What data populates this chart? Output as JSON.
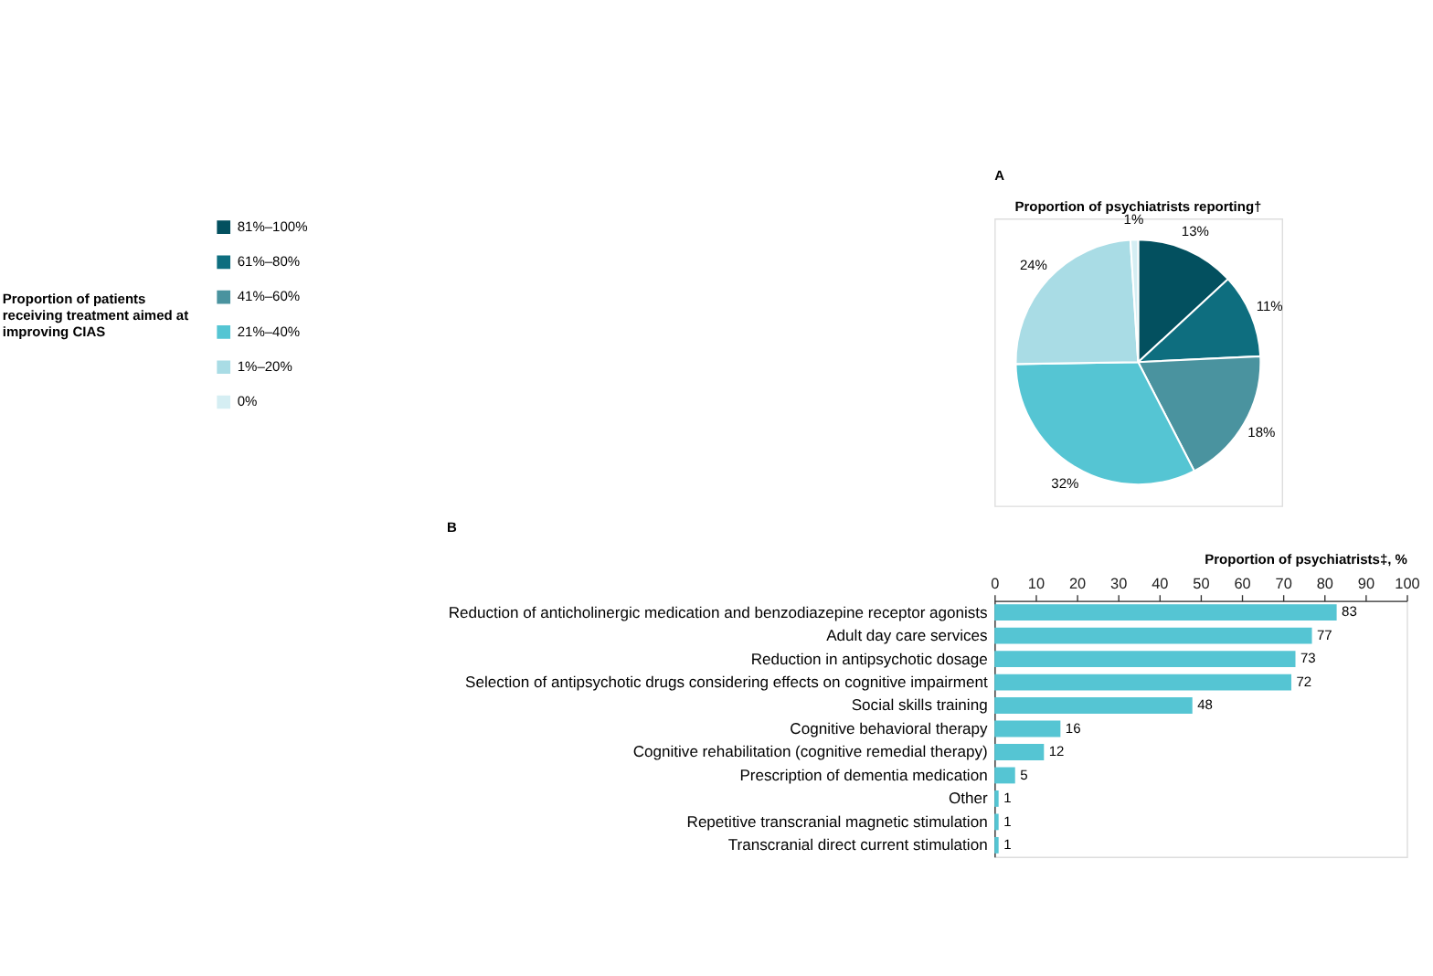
{
  "chart_data": [
    {
      "type": "pie",
      "title": "Proportion of psychiatrists reporting†",
      "legend_title": "Proportion of patients receiving treatment aimed at improving CIAS",
      "annotations": [
        "A"
      ],
      "legend": "left",
      "categories": [
        "81%–100%",
        "61%–80%",
        "41%–60%",
        "21%–40%",
        "1%–20%",
        "0%"
      ],
      "values": [
        13,
        11,
        18,
        32,
        24,
        1
      ],
      "value_labels": [
        "13%",
        "11%",
        "18%",
        "32%",
        "24%",
        "1%"
      ],
      "colors": [
        "#03505f",
        "#0e6e7f",
        "#4a939f",
        "#55c5d3",
        "#a9dce5",
        "#d5eef3"
      ]
    },
    {
      "type": "bar",
      "orientation": "horizontal",
      "xlabel": "Proportion of psychiatrists‡, %",
      "annotations": [
        "B"
      ],
      "categories": [
        "Reduction of anticholinergic medication and benzodiazepine receptor agonists",
        "Adult day care services",
        "Reduction in antipsychotic dosage",
        "Selection of antipsychotic drugs considering effects on cognitive impairment",
        "Social skills training",
        "Cognitive behavioral therapy",
        "Cognitive rehabilitation (cognitive remedial therapy)",
        "Prescription of dementia medication",
        "Other",
        "Repetitive transcranial magnetic stimulation",
        "Transcranial direct current stimulation"
      ],
      "values": [
        83,
        77,
        73,
        72,
        48,
        16,
        12,
        5,
        1,
        1,
        1
      ],
      "color": "#55c5d3",
      "xlim": [
        0,
        100
      ],
      "xticks": [
        0,
        10,
        20,
        30,
        40,
        50,
        60,
        70,
        80,
        90,
        100
      ],
      "data_labels": true,
      "grid": false
    }
  ]
}
